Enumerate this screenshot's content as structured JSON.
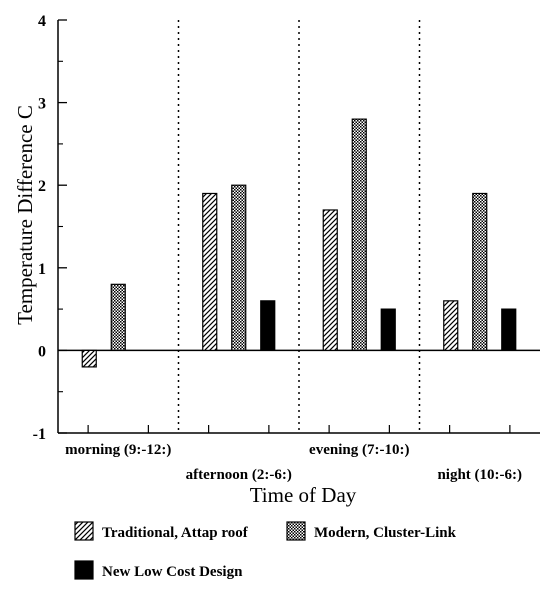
{
  "chart_data": {
    "type": "bar",
    "title": "",
    "xlabel": "Time of Day",
    "ylabel": "Temperature Difference  C",
    "ylim": [
      -1,
      4
    ],
    "yticks": [
      "-1",
      "0",
      "1",
      "2",
      "3",
      "4"
    ],
    "grid": false,
    "categories": [
      "morning (9:-12:)",
      "afternoon (2:-6:)",
      "evening (7:-10:)",
      "night (10:-6:)"
    ],
    "legend_position": "bottom",
    "series": [
      {
        "name": "Traditional, Attap roof",
        "pattern": "diagonal-hatch",
        "values": [
          -0.2,
          1.9,
          1.7,
          0.6
        ]
      },
      {
        "name": "Modern, Cluster-Link",
        "pattern": "stipple",
        "values": [
          0.8,
          2.0,
          2.8,
          1.9
        ]
      },
      {
        "name": "New Low Cost Design",
        "pattern": "solid",
        "color": "#000000",
        "values": [
          null,
          0.6,
          0.5,
          0.5
        ]
      }
    ]
  }
}
